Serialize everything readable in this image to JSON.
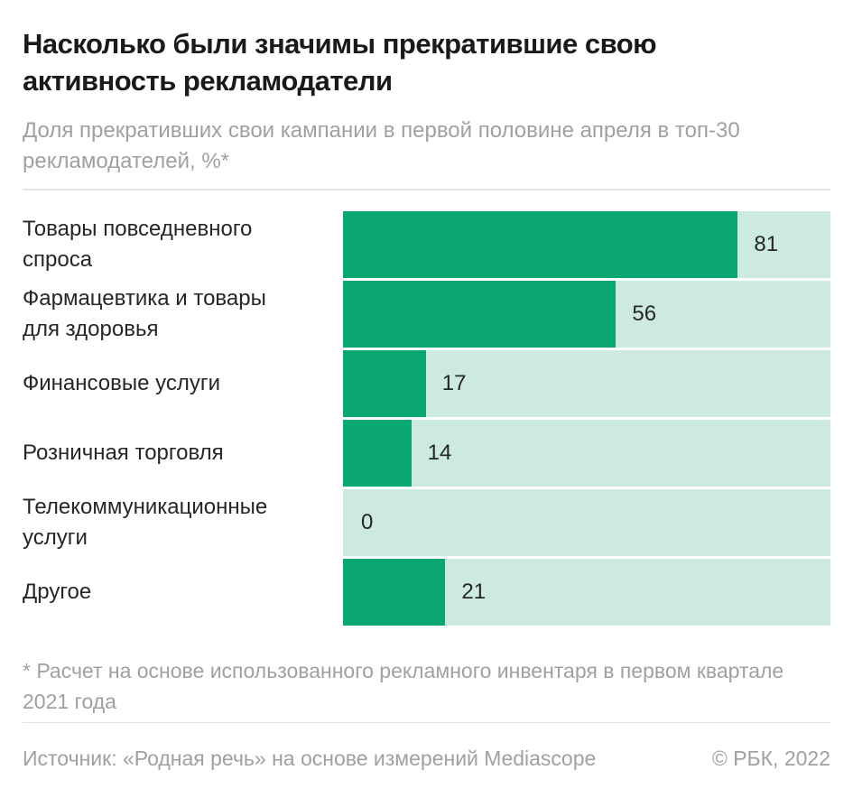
{
  "header": {
    "title": "Насколько были значимы прекратившие свою активность рекламодатели",
    "subtitle": "Доля прекративших свои кампании в первой половине апреля в топ-30 рекламодателей, %*"
  },
  "chart_data": {
    "type": "bar",
    "orientation": "horizontal",
    "title": "Насколько были значимы прекратившие свою активность рекламодатели",
    "subtitle": "Доля прекративших свои кампании в первой половине апреля в топ-30 рекламодателей, %*",
    "unit": "%",
    "xlim": [
      0,
      100
    ],
    "grid": false,
    "legend": false,
    "categories": [
      "Товары повседневного спроса",
      "Фармацевтика и товары для здоровья",
      "Финансовые услуги",
      "Розничная торговля",
      "Телекоммуникационные услуги",
      "Другое"
    ],
    "values": [
      81,
      56,
      17,
      14,
      0,
      21
    ]
  },
  "footer": {
    "footnote": "* Расчет на основе использованного рекламного инвентаря в первом квартале 2021 года",
    "source": "Источник: «Родная речь» на основе измерений Mediascope",
    "copyright": "© РБК, 2022"
  },
  "colors": {
    "background": "#ffffff",
    "bar_fill": "#0aa674",
    "bar_track": "#cdeadf",
    "title_text": "#1a1a1a",
    "label_text": "#262626",
    "muted_text": "#a0a0a0",
    "divider": "#e4e4e4"
  }
}
